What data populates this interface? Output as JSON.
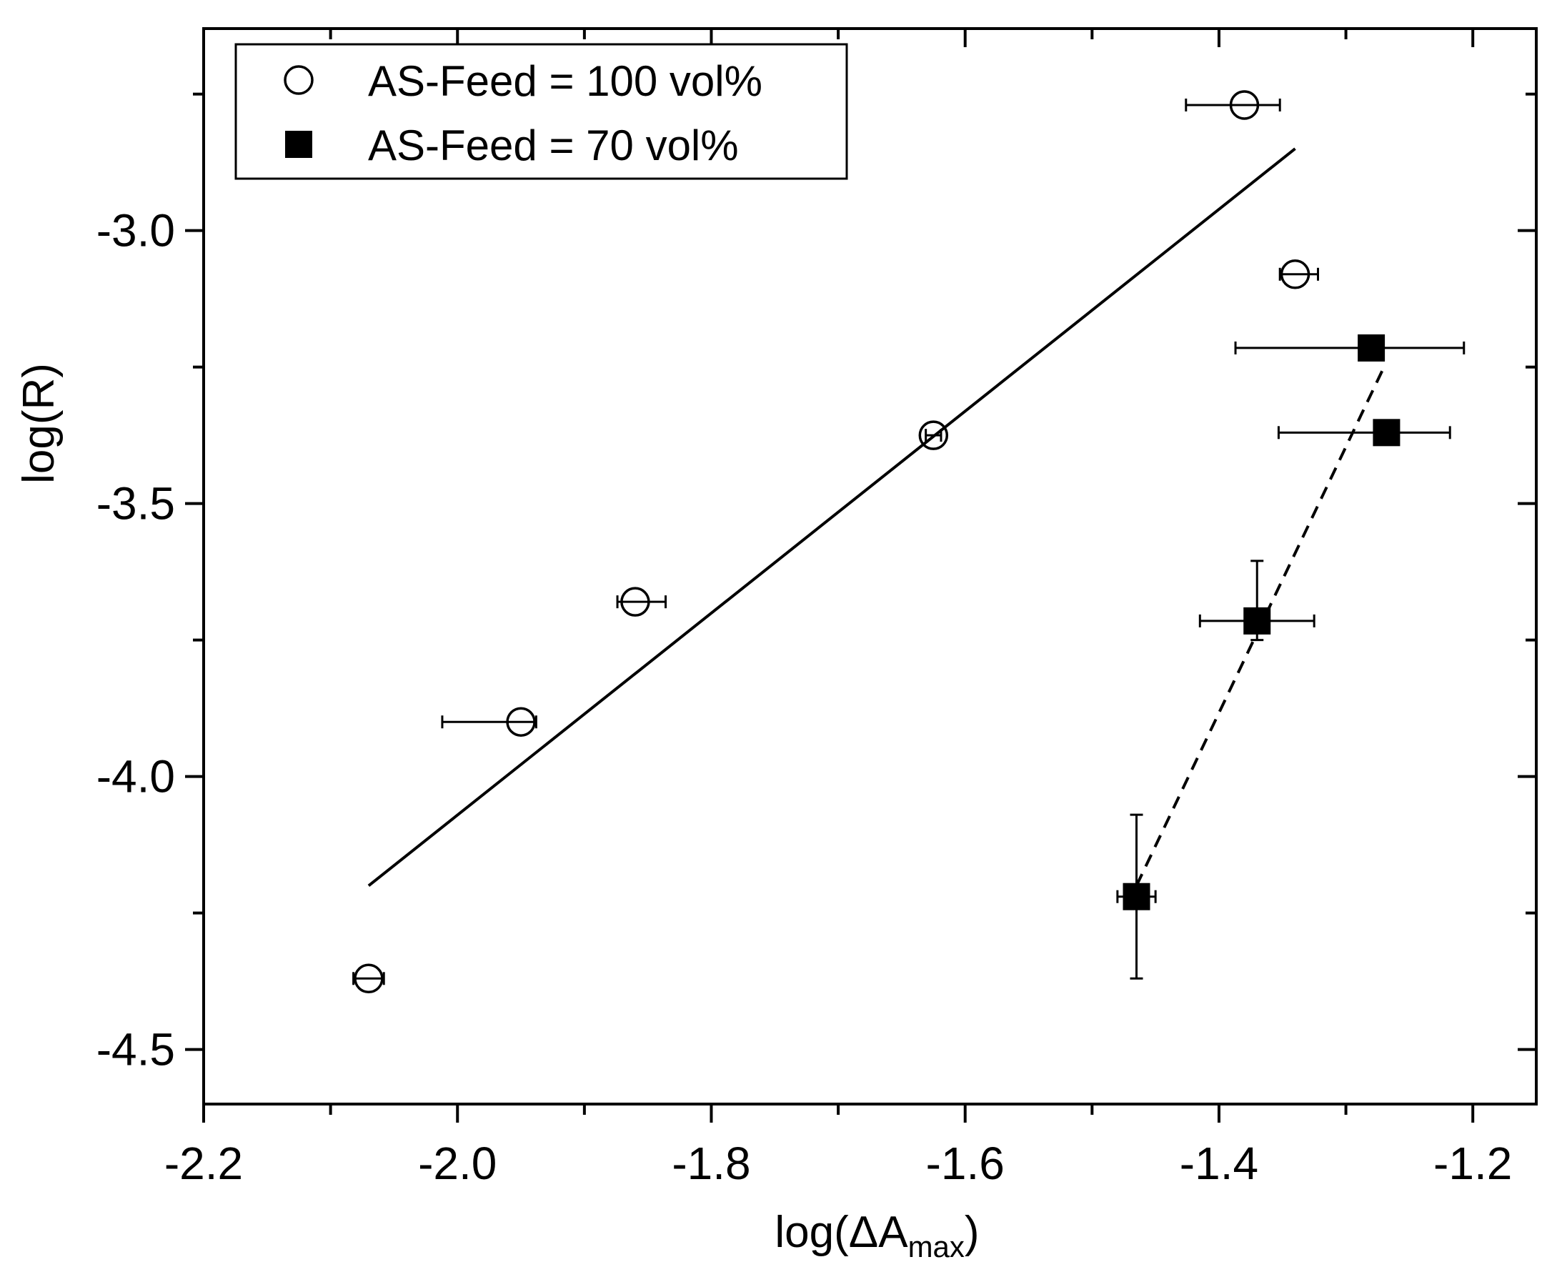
{
  "chart_data": {
    "type": "scatter",
    "title": "",
    "xlabel": "log(ΔA_max)",
    "xlabel_main": "log(ΔA",
    "xlabel_sub": "max",
    "xlabel_close": ")",
    "ylabel": "log(R)",
    "xlim": [
      -2.2,
      -1.15
    ],
    "ylim": [
      -4.6,
      -2.63
    ],
    "xticks": [
      -2.2,
      -2.0,
      -1.8,
      -1.6,
      -1.4,
      -1.2
    ],
    "xtick_labels": [
      "-2.2",
      "-2.0",
      "-1.8",
      "-1.6",
      "-1.4",
      "-1.2"
    ],
    "yticks": [
      -4.5,
      -4.0,
      -3.5,
      -3.0
    ],
    "ytick_labels": [
      "-4.5",
      "-4.0",
      "-3.5",
      "-3.0"
    ],
    "legend_position": "top-left",
    "series": [
      {
        "name": "AS-Feed = 100 vol%",
        "marker": "open-circle",
        "points": [
          {
            "x": -2.07,
            "y": -4.37,
            "xerr": [
              0.012,
              0.012
            ],
            "yerr": null
          },
          {
            "x": -1.95,
            "y": -3.9,
            "xerr": [
              0.062,
              0.012
            ],
            "yerr": null
          },
          {
            "x": -1.86,
            "y": -3.68,
            "xerr": [
              0.014,
              0.024
            ],
            "yerr": null
          },
          {
            "x": -1.625,
            "y": -3.375,
            "xerr": [
              0.006,
              0.006
            ],
            "yerr": null
          },
          {
            "x": -1.38,
            "y": -2.77,
            "xerr": [
              0.046,
              0.028
            ],
            "yerr": null
          },
          {
            "x": -1.34,
            "y": -3.08,
            "xerr": [
              0.012,
              0.018
            ],
            "yerr": null
          }
        ],
        "fit": {
          "style": "solid",
          "x": [
            -2.07,
            -1.34
          ],
          "y": [
            -4.2,
            -2.85
          ]
        }
      },
      {
        "name": "AS-Feed = 70 vol%",
        "marker": "filled-square",
        "points": [
          {
            "x": -1.465,
            "y": -4.22,
            "xerr": [
              0.015,
              0.015
            ],
            "yerr": [
              0.15,
              0.15
            ]
          },
          {
            "x": -1.37,
            "y": -3.715,
            "xerr": [
              0.045,
              0.045
            ],
            "yerr": [
              0.035,
              0.11
            ]
          },
          {
            "x": -1.28,
            "y": -3.215,
            "xerr": [
              0.107,
              0.073
            ],
            "yerr": null
          },
          {
            "x": -1.268,
            "y": -3.37,
            "xerr": [
              0.085,
              0.05
            ],
            "yerr": null
          }
        ],
        "fit": {
          "style": "dashed",
          "x": [
            -1.465,
            -1.27
          ],
          "y": [
            -4.2,
            -3.25
          ]
        }
      }
    ]
  }
}
